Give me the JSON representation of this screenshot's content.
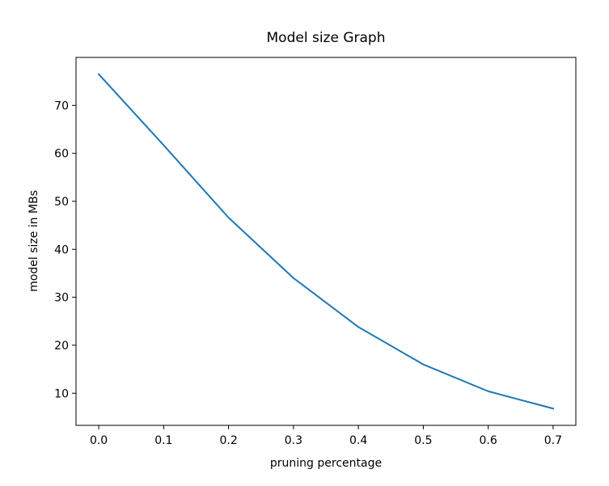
{
  "chart_data": {
    "type": "line",
    "title": "Model size Graph",
    "xlabel": "pruning percentage",
    "ylabel": "model size in MBs",
    "x": [
      0.0,
      0.1,
      0.2,
      0.3,
      0.4,
      0.5,
      0.6,
      0.7
    ],
    "series": [
      {
        "values": [
          76.5,
          61.7,
          46.6,
          34.0,
          23.8,
          16.0,
          10.4,
          6.8
        ]
      }
    ],
    "xlim": [
      -0.035,
      0.735
    ],
    "ylim": [
      3.3,
      80.0
    ],
    "xticks": [
      0.0,
      0.1,
      0.2,
      0.3,
      0.4,
      0.5,
      0.6,
      0.7
    ],
    "xtick_labels": [
      "0.0",
      "0.1",
      "0.2",
      "0.3",
      "0.4",
      "0.5",
      "0.6",
      "0.7"
    ],
    "yticks": [
      10,
      20,
      30,
      40,
      50,
      60,
      70
    ],
    "ytick_labels": [
      "10",
      "20",
      "30",
      "40",
      "50",
      "60",
      "70"
    ],
    "grid": false,
    "colors": {
      "line": "#1f77b4",
      "axes": "#000000"
    }
  }
}
